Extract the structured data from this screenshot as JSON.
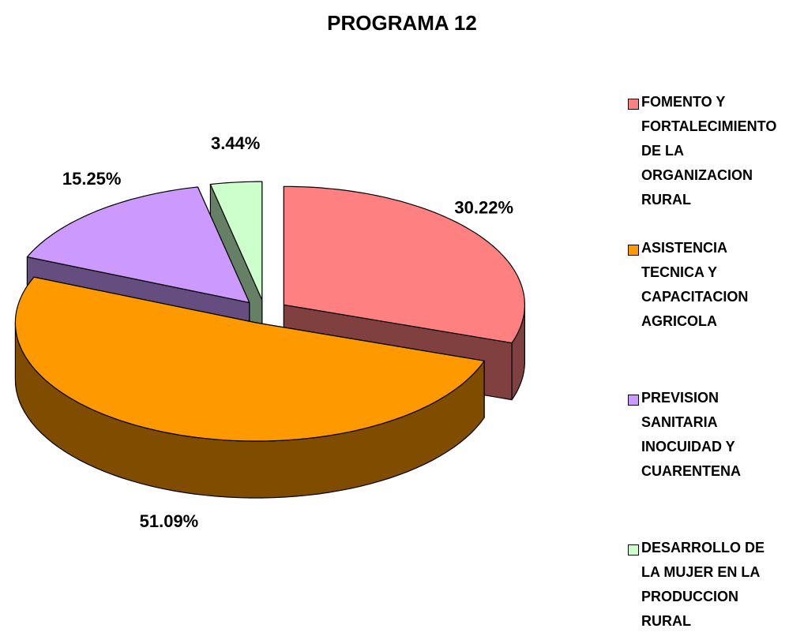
{
  "chart_data": {
    "type": "pie3d",
    "title": "PROGRAMA 12",
    "categories": [
      "FOMENTO Y FORTALECIMIENTO DE LA ORGANIZACION RURAL",
      "ASISTENCIA TECNICA Y CAPACITACION AGRICOLA",
      "PREVISION SANITARIA INOCUIDAD Y CUARENTENA",
      "DESARROLLO DE LA MUJER EN LA PRODUCCION RURAL"
    ],
    "values": [
      30.22,
      51.09,
      15.25,
      3.44
    ],
    "value_labels": [
      "30.22%",
      "51.09%",
      "15.25%",
      "3.44%"
    ],
    "colors": [
      "#ff8080",
      "#ff9900",
      "#cc99ff",
      "#ccffcc"
    ],
    "legend": "right"
  }
}
